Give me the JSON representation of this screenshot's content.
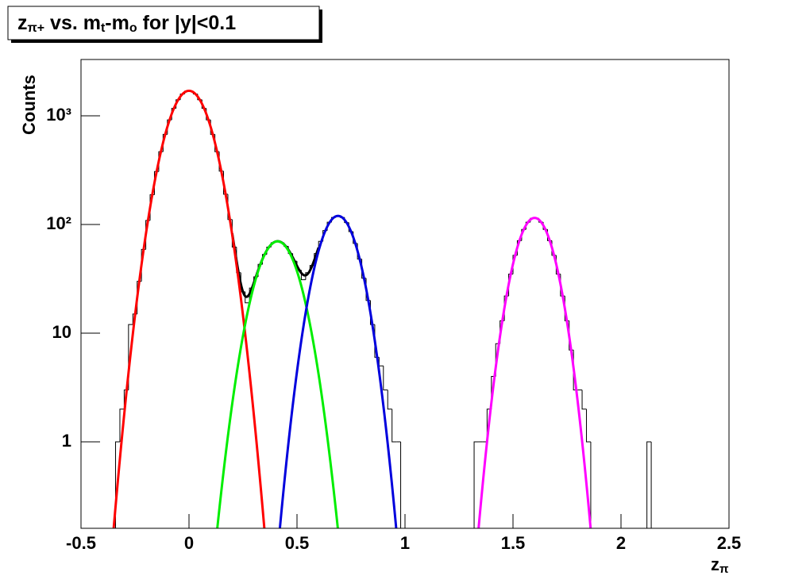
{
  "chart_data": {
    "type": "histogram",
    "title": [
      "z",
      "π+",
      " vs. m",
      "t",
      "-m",
      "o",
      " for |y|<0.1"
    ],
    "xlabel": [
      "z",
      "π"
    ],
    "ylabel": "Counts",
    "log_y": true,
    "xlim": [
      -0.5,
      2.5
    ],
    "ylim": [
      0.16,
      3300
    ],
    "xticks": [
      -0.5,
      0,
      0.5,
      1,
      1.5,
      2,
      2.5
    ],
    "yticks": [
      1,
      10,
      {
        "value": 100,
        "label": "10²"
      },
      {
        "value": 1000,
        "label": "10³"
      }
    ],
    "color": "#000000",
    "bins": [
      -0.36,
      -0.34,
      -0.32,
      -0.3,
      -0.28,
      -0.26,
      -0.24,
      -0.22,
      -0.2,
      -0.18,
      -0.16,
      -0.14,
      -0.12,
      -0.1,
      -0.08,
      -0.06,
      -0.04,
      -0.02,
      0,
      0.02,
      0.04,
      0.06,
      0.08,
      0.1,
      0.12,
      0.14,
      0.16,
      0.18,
      0.2,
      0.22,
      0.24,
      0.26,
      0.28,
      0.3,
      0.32,
      0.34,
      0.36,
      0.38,
      0.4,
      0.42,
      0.44,
      0.46,
      0.48,
      0.5,
      0.52,
      0.54,
      0.56,
      0.58,
      0.6,
      0.62,
      0.64,
      0.66,
      0.68,
      0.7,
      0.72,
      0.74,
      0.76,
      0.78,
      0.8,
      0.82,
      0.84,
      0.86,
      0.88,
      0.9,
      0.92,
      0.94,
      0.96,
      0.98,
      1,
      1.02,
      1.04,
      1.06,
      1.08,
      1.1,
      1.12,
      1.14,
      1.16,
      1.18,
      1.2,
      1.22,
      1.24,
      1.26,
      1.28,
      1.3,
      1.32,
      1.34,
      1.36,
      1.38,
      1.4,
      1.42,
      1.44,
      1.46,
      1.48,
      1.5,
      1.52,
      1.54,
      1.56,
      1.58,
      1.6,
      1.62,
      1.64,
      1.66,
      1.68,
      1.7,
      1.72,
      1.74,
      1.76,
      1.78,
      1.8,
      1.82,
      1.84,
      1.86,
      1.88,
      1.9,
      1.92,
      1.94,
      1.96,
      1.98,
      2,
      2.02,
      2.04,
      2.06,
      2.08,
      2.1,
      2.12,
      2.14,
      2.16
    ],
    "values": [
      0,
      1,
      2,
      3,
      12,
      15,
      30,
      59,
      109,
      188,
      307,
      468,
      675,
      917,
      1171,
      1405,
      1587,
      1687,
      1687,
      1587,
      1405,
      1171,
      917,
      675,
      468,
      310,
      190,
      111,
      62,
      36,
      24,
      19,
      26,
      33,
      43,
      53,
      62,
      68,
      70,
      68,
      63,
      54,
      46,
      38,
      31,
      36,
      42,
      54,
      70,
      88,
      105,
      116,
      120,
      116,
      104,
      86,
      67,
      48,
      32,
      20,
      12,
      6,
      5,
      3,
      2,
      1,
      1,
      0,
      0,
      0,
      0,
      0,
      0,
      0,
      0,
      0,
      0,
      0,
      0,
      0,
      0,
      0,
      0,
      0,
      1,
      1,
      1,
      2,
      4,
      8,
      13,
      22,
      35,
      52,
      71,
      90,
      105,
      114,
      114,
      105,
      90,
      71,
      52,
      35,
      22,
      13,
      7,
      3,
      3,
      2,
      1,
      0,
      0,
      0,
      0,
      0,
      0,
      0,
      0,
      0,
      0,
      0,
      0,
      0,
      1,
      0
    ],
    "fits": [
      {
        "color": "#ff0000",
        "constant": 1700,
        "mean": 0,
        "sigma": 0.081
      },
      {
        "color": "#00ee00",
        "constant": 70,
        "mean": 0.41,
        "sigma": 0.08
      },
      {
        "color": "#0000dd",
        "constant": 120,
        "mean": 0.69,
        "sigma": 0.074
      },
      {
        "color": "#ff00ff",
        "constant": 115,
        "mean": 1.6,
        "sigma": 0.0715
      }
    ],
    "total_fit": {
      "color": "#000000",
      "range": [
        0.2,
        0.6
      ]
    }
  }
}
